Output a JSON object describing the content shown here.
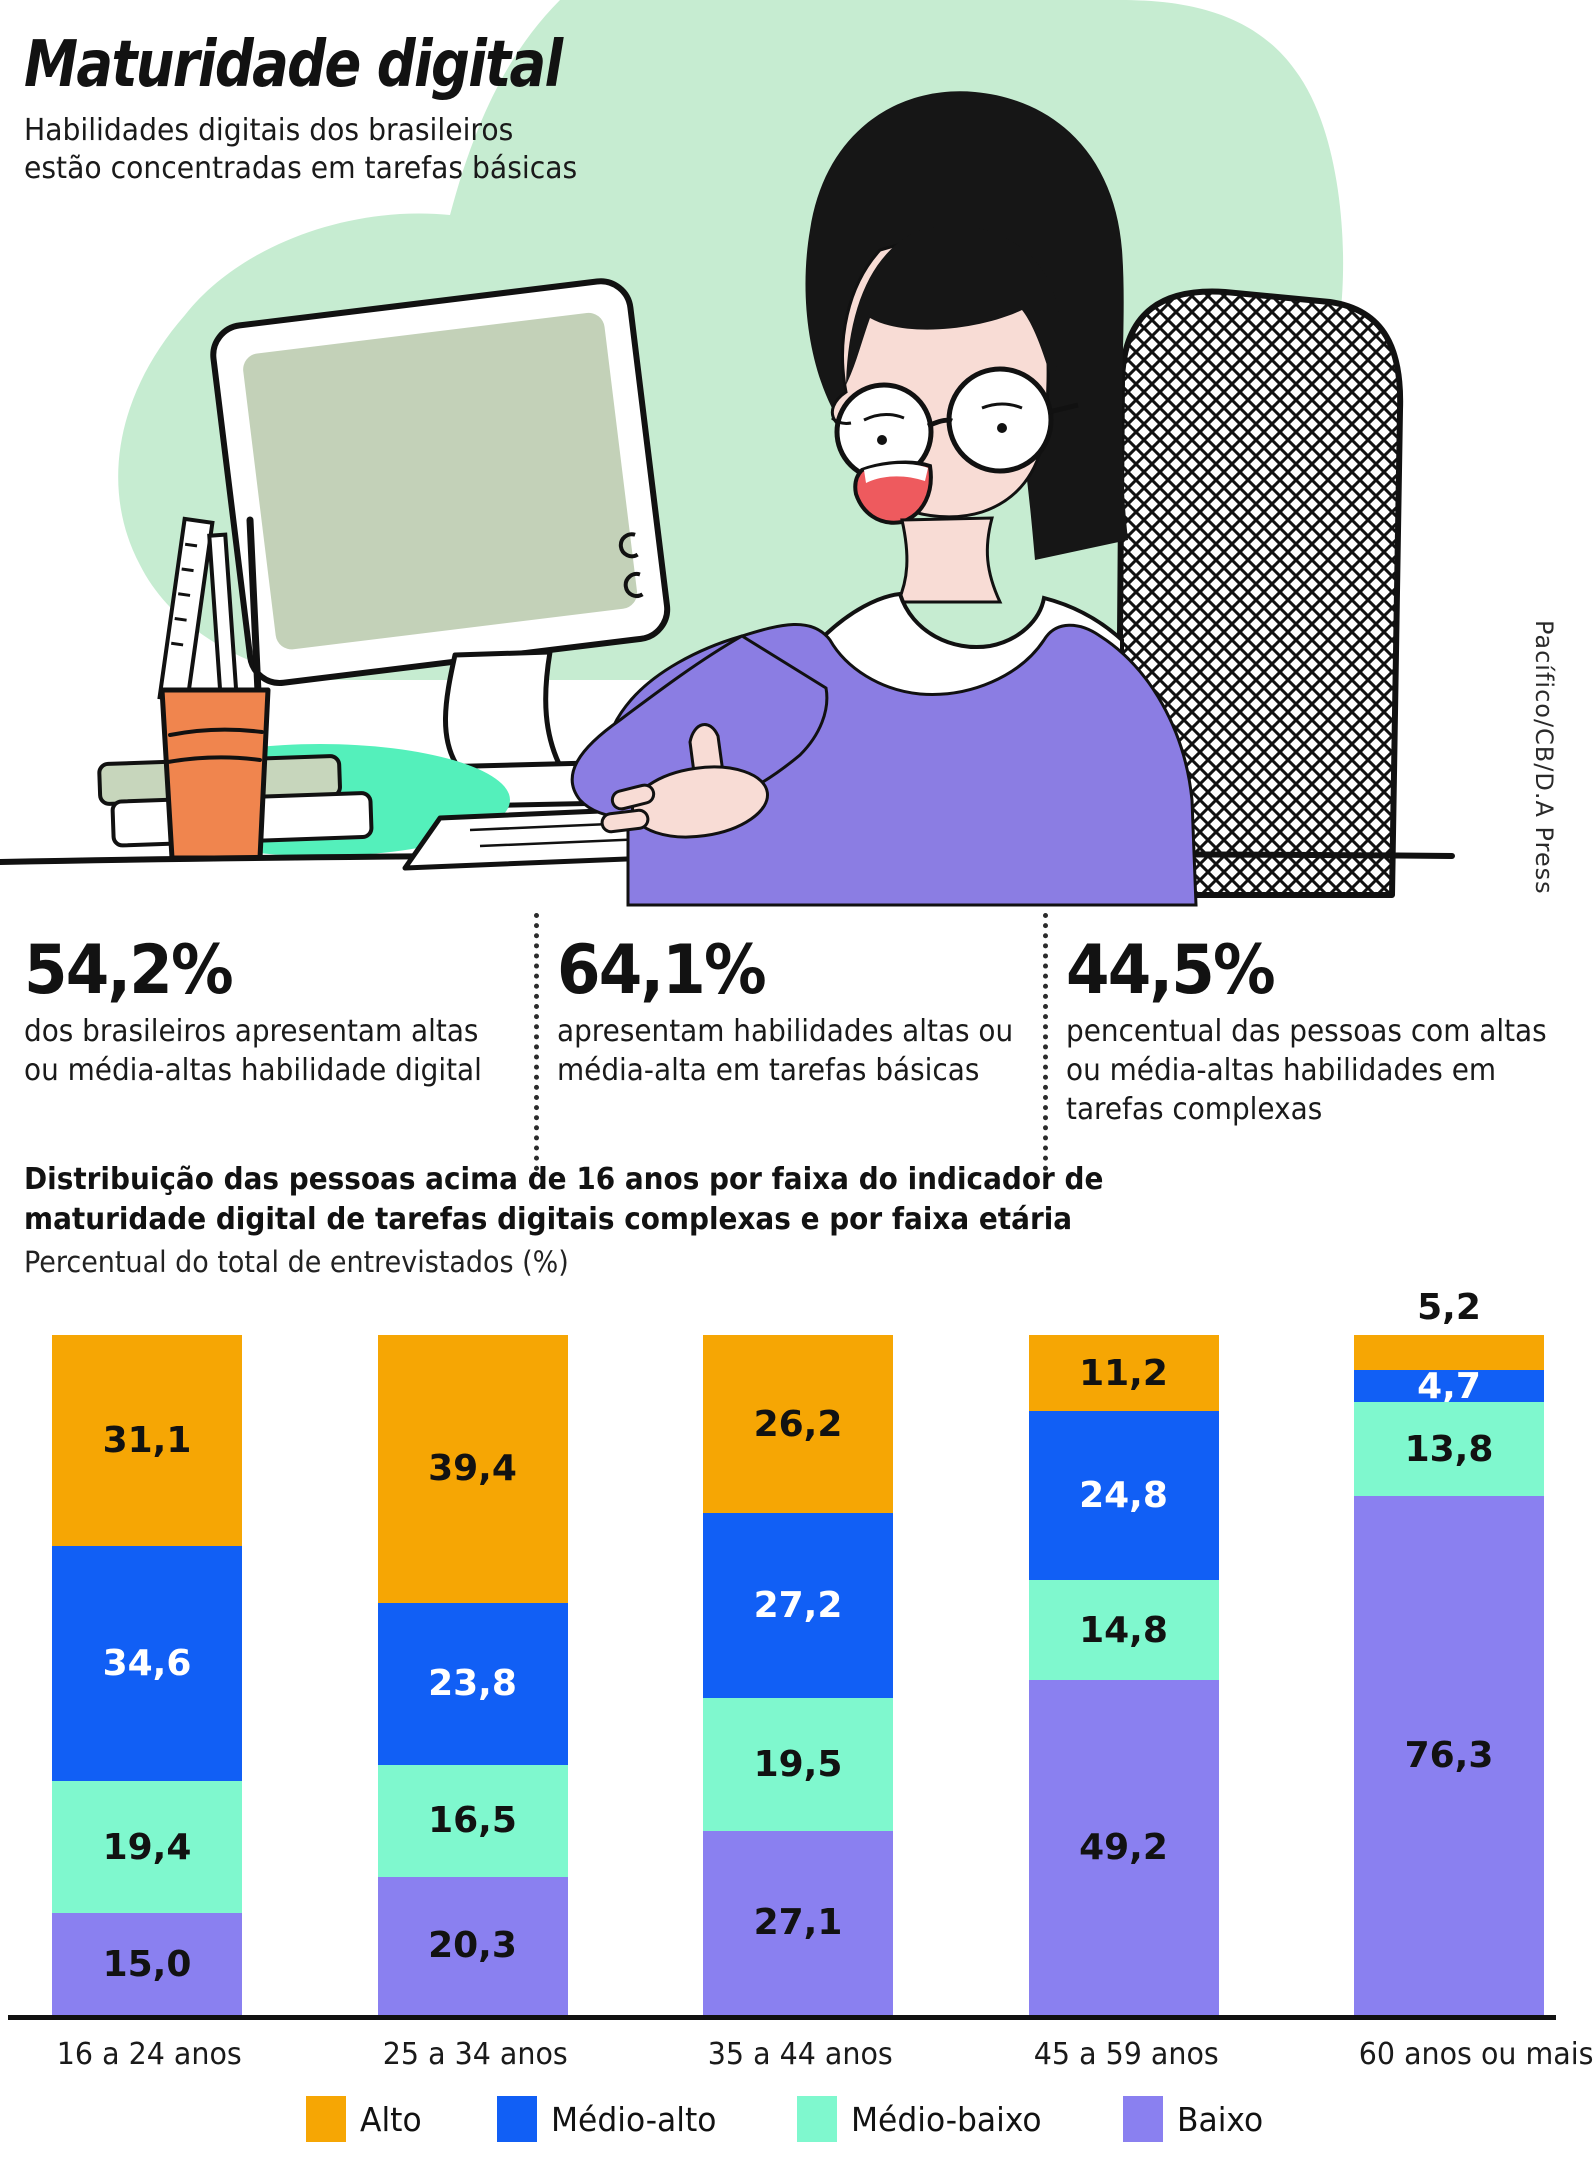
{
  "header": {
    "title": "Maturidade digital",
    "subtitle_lines": [
      "Habilidades digitais dos brasileiros",
      "estão concentradas em tarefas básicas"
    ],
    "credit": "Pacífico/CB/D.A Press"
  },
  "stats": [
    {
      "value": "54,2%",
      "lines": [
        "dos brasileiros apresentam altas",
        "ou média-altas habilidade digital"
      ]
    },
    {
      "value": "64,1%",
      "lines": [
        "apresentam habilidades altas ou",
        "média-alta em tarefas básicas"
      ]
    },
    {
      "value": "44,5%",
      "lines": [
        "pencentual das pessoas com altas",
        "ou média-altas habilidades em",
        "tarefas complexas"
      ]
    }
  ],
  "chart_data": {
    "type": "bar",
    "stacked": true,
    "percent_of_total": true,
    "title_lines": [
      "Distribuição das pessoas acima de 16 anos por faixa do indicador de",
      "maturidade digital de tarefas digitais complexas e por faixa etária"
    ],
    "subtitle": "Percentual do total de entrevistados (%)",
    "unit": "%",
    "decimal_separator": ",",
    "categories": [
      "16 a 24 anos",
      "25 a 34 anos",
      "35 a 44 anos",
      "45 a 59 anos",
      "60 anos ou mais"
    ],
    "series": [
      {
        "name": "Alto",
        "color": "#F6A604",
        "label_color": "#121212",
        "values": [
          31.1,
          39.4,
          26.2,
          11.2,
          5.2
        ]
      },
      {
        "name": "Médio-alto",
        "color": "#115FF5",
        "label_color": "#ffffff",
        "values": [
          34.6,
          23.8,
          27.2,
          24.8,
          4.7
        ]
      },
      {
        "name": "Médio-baixo",
        "color": "#7FF8CE",
        "label_color": "#121212",
        "values": [
          19.4,
          16.5,
          19.5,
          14.8,
          13.8
        ]
      },
      {
        "name": "Baixo",
        "color": "#8A80F0",
        "label_color": "#121212",
        "values": [
          15.0,
          20.3,
          27.1,
          49.2,
          76.3
        ]
      }
    ],
    "ylim": [
      0,
      100
    ],
    "grid": false,
    "legend_position": "bottom"
  },
  "illustration": {
    "background_blob": "#C6ECD1",
    "monitor_screen": "#C3D1B8",
    "sweater": "#8B7DE3",
    "skin": "#F8DCD5",
    "cup": "#F0854E",
    "teal_accent": "#54F0BB",
    "book": "#C7D6BC",
    "mouth": "#EE5A5E",
    "ink": "#111111"
  }
}
